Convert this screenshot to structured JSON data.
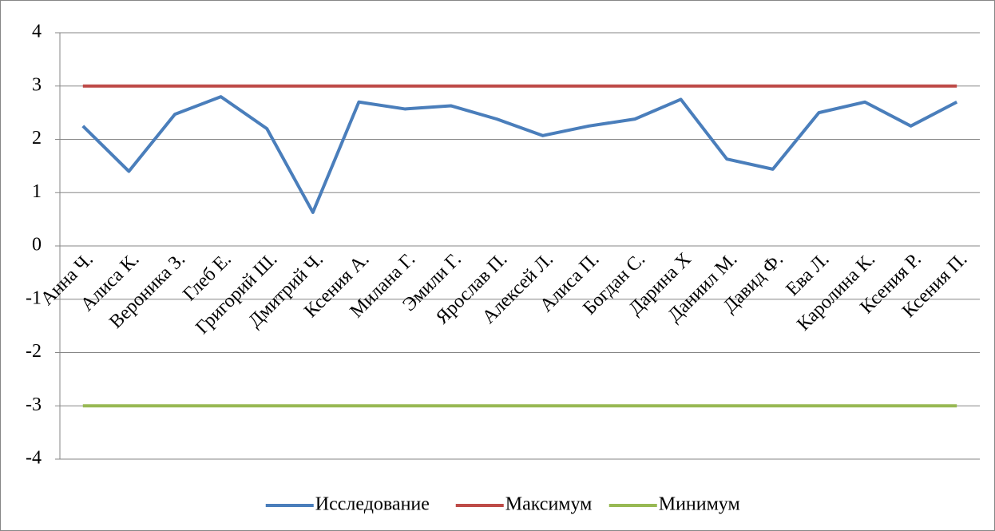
{
  "chart_data": {
    "type": "line",
    "categories": [
      "Анна Ч.",
      "Алиса К.",
      "Вероника З.",
      "Глеб Е.",
      "Григорий Ш.",
      "Дмитрий Ч.",
      "Ксения А.",
      "Милана Г.",
      "Эмили Г.",
      "Ярослав П.",
      "Алексей Л.",
      "Алиса П.",
      "Богдан С.",
      "Дарина Х",
      "Даниил М.",
      "Давид Ф.",
      "Ева Л.",
      "Каролина К.",
      "Ксения Р.",
      "Ксения П."
    ],
    "series": [
      {
        "name": "Исследование",
        "color": "#4a7ebb",
        "values": [
          2.25,
          1.4,
          2.47,
          2.8,
          2.2,
          0.63,
          2.7,
          2.57,
          2.63,
          2.38,
          2.07,
          2.25,
          2.38,
          2.75,
          1.63,
          1.44,
          2.5,
          2.7,
          2.25,
          2.7
        ]
      },
      {
        "name": "Максимум",
        "color": "#be4b48",
        "values": [
          3,
          3,
          3,
          3,
          3,
          3,
          3,
          3,
          3,
          3,
          3,
          3,
          3,
          3,
          3,
          3,
          3,
          3,
          3,
          3
        ]
      },
      {
        "name": "Минимум",
        "color": "#98b954",
        "values": [
          -3,
          -3,
          -3,
          -3,
          -3,
          -3,
          -3,
          -3,
          -3,
          -3,
          -3,
          -3,
          -3,
          -3,
          -3,
          -3,
          -3,
          -3,
          -3,
          -3
        ]
      }
    ],
    "ylim": [
      -4,
      4
    ],
    "yticks": [
      -4,
      -3,
      -2,
      -1,
      0,
      1,
      2,
      3,
      4
    ],
    "grid": true,
    "legend": "bottom"
  }
}
